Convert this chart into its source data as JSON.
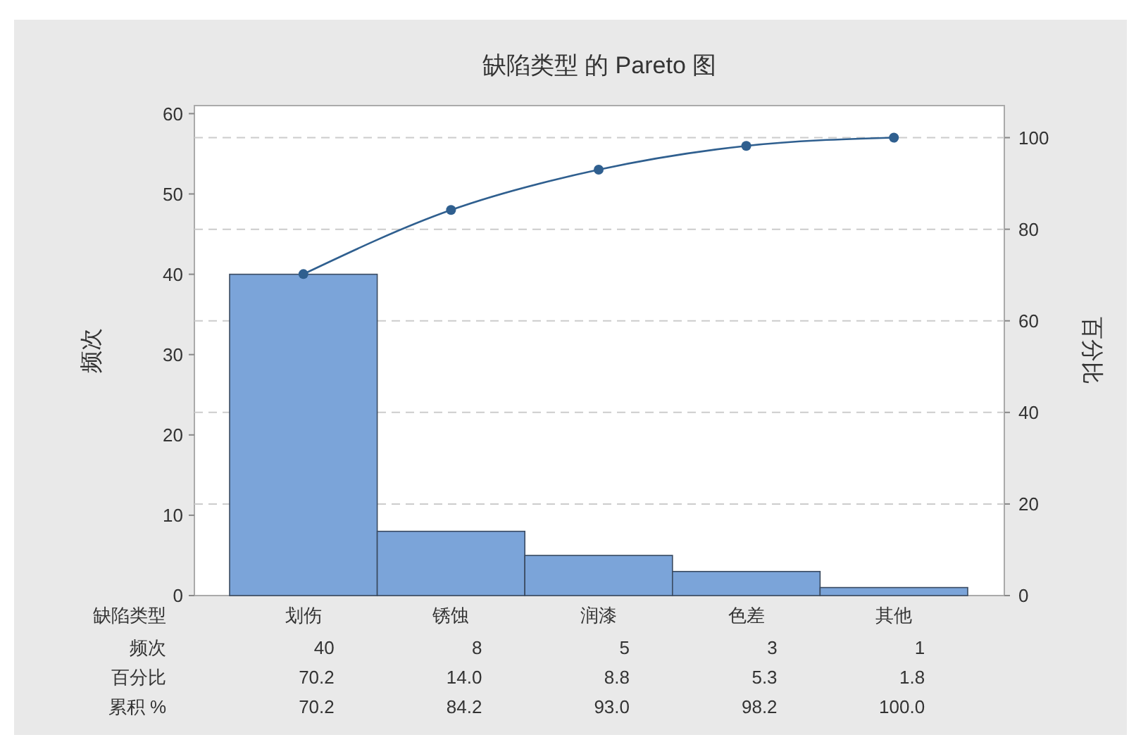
{
  "chart_data": {
    "type": "bar",
    "title": "缺陷类型 的 Pareto 图",
    "xlabel": "缺陷类型",
    "ylabel": "频次",
    "y2label": "百分比",
    "categories": [
      "划伤",
      "锈蚀",
      "润漆",
      "色差",
      "其他"
    ],
    "series": [
      {
        "color": "#7ba4d9",
        "values": [
          40,
          8,
          5,
          3,
          1
        ],
        "value_labels": [
          "40",
          "8",
          "5",
          "3",
          "1"
        ]
      },
      {
        "type": "line",
        "axis": "y2",
        "color": "#2f5f8f",
        "values": [
          70.2,
          84.2,
          93.0,
          98.2,
          100.0
        ],
        "value_labels": [
          "70.2",
          "84.2",
          "93.0",
          "98.2",
          "100.0"
        ]
      }
    ],
    "annotations": [
      "频次",
      "百分比",
      "70.2",
      "14.0",
      "8.8",
      "5.3",
      "1.8",
      "累积 %"
    ],
    "ylim": [
      0,
      61
    ],
    "yticks": [
      0,
      10,
      20,
      30,
      40,
      50,
      60
    ],
    "y2lim": [
      0,
      107
    ],
    "y2ticks": [
      0,
      20,
      40,
      60,
      80,
      100
    ],
    "grid": true,
    "marker": "circle"
  }
}
